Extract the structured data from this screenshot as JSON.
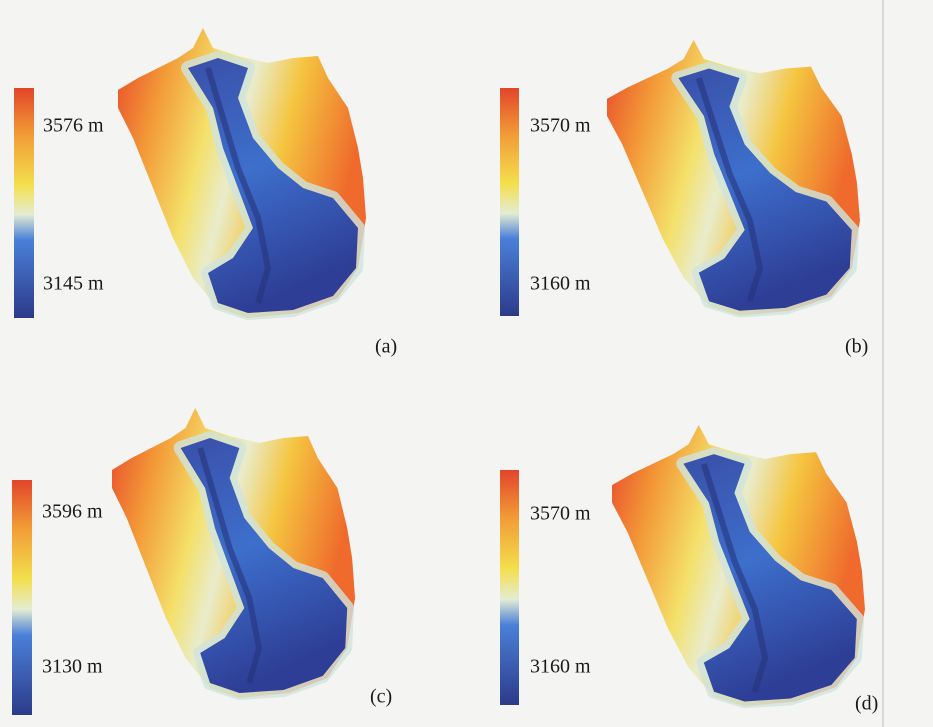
{
  "panels": [
    {
      "max_label": "3576 m",
      "min_label": "3145 m",
      "caption": "(a)"
    },
    {
      "max_label": "3570 m",
      "min_label": "3160 m",
      "caption": "(b)"
    },
    {
      "max_label": "3596 m",
      "min_label": "3130 m",
      "caption": "(c)"
    },
    {
      "max_label": "3570 m",
      "min_label": "3160 m",
      "caption": "(d)"
    }
  ]
}
